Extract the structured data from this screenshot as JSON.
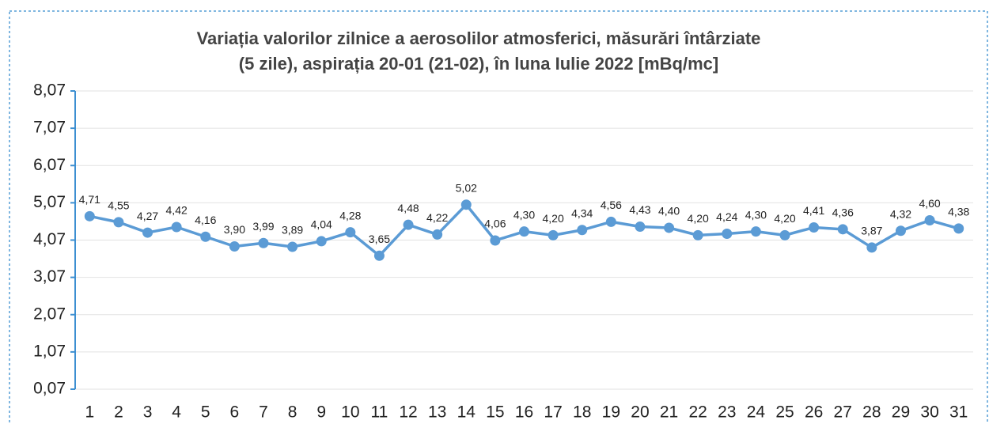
{
  "chart_data": {
    "type": "line",
    "title": [
      "Variația valorilor zilnice a aerosolilor atmosferici, măsurări întârziate",
      "(5 zile), aspirația 20-01 (21-02),  în luna Iulie 2022 [mBq/mc]"
    ],
    "categories": [
      "1",
      "2",
      "3",
      "4",
      "5",
      "6",
      "7",
      "8",
      "9",
      "10",
      "11",
      "12",
      "13",
      "14",
      "15",
      "16",
      "17",
      "18",
      "19",
      "20",
      "21",
      "22",
      "23",
      "24",
      "25",
      "26",
      "27",
      "28",
      "29",
      "30",
      "31"
    ],
    "series": [
      {
        "name": null,
        "color": "#5b9bd5",
        "values": [
          4.71,
          4.55,
          4.27,
          4.42,
          4.16,
          3.9,
          3.99,
          3.89,
          4.04,
          4.28,
          3.65,
          4.48,
          4.22,
          5.02,
          4.06,
          4.3,
          4.2,
          4.34,
          4.56,
          4.43,
          4.4,
          4.2,
          4.24,
          4.3,
          4.2,
          4.41,
          4.36,
          3.87,
          4.32,
          4.6,
          4.38
        ],
        "value_labels": [
          "4,71",
          "4,55",
          "4,27",
          "4,42",
          "4,16",
          "3,90",
          "3,99",
          "3,89",
          "4,04",
          "4,28",
          "3,65",
          "4,48",
          "4,22",
          "5,02",
          "4,06",
          "4,30",
          "4,20",
          "4,34",
          "4,56",
          "4,43",
          "4,40",
          "4,20",
          "4,24",
          "4,30",
          "4,20",
          "4,41",
          "4,36",
          "3,87",
          "4,32",
          "4,60",
          "4,38"
        ]
      }
    ],
    "ylim": [
      0.07,
      8.07
    ],
    "yticks": [
      {
        "value": 0.07,
        "label": "0,07"
      },
      {
        "value": 1.07,
        "label": "1,07"
      },
      {
        "value": 2.07,
        "label": "2,07"
      },
      {
        "value": 3.07,
        "label": "3,07"
      },
      {
        "value": 4.07,
        "label": "4,07"
      },
      {
        "value": 5.07,
        "label": "5,07"
      },
      {
        "value": 6.07,
        "label": "6,07"
      },
      {
        "value": 7.07,
        "label": "7,07"
      },
      {
        "value": 8.07,
        "label": "8,07"
      }
    ],
    "grid": true
  }
}
